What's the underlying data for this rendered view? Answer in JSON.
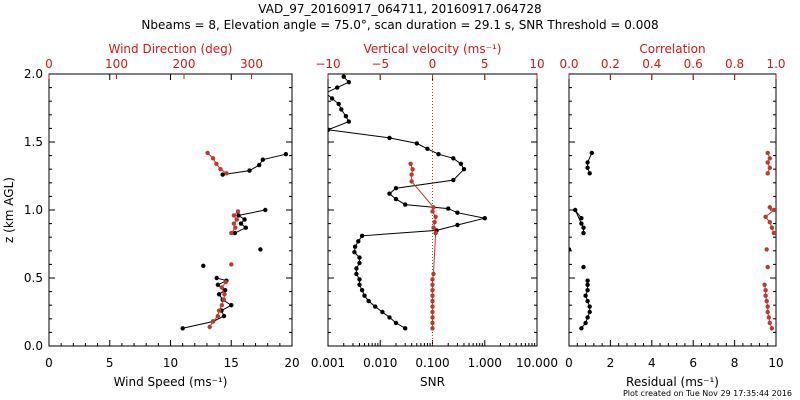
{
  "title": "VAD_97_20160917_064711, 20160917.064728",
  "subtitle": "Nbeams = 8, Elevation angle = 75.0°, scan duration = 29.1 s, SNR Threshold = 0.008",
  "footer": "Plot created on Tue Nov 29 17:35:44 2016",
  "colors": {
    "black": "#000000",
    "red": "#c0392b",
    "accent_red": "#d01a1a"
  },
  "chart_data": [
    {
      "type": "scatter",
      "ylabel": "z (km AGL)",
      "ylim": [
        0,
        2.0
      ],
      "yticks": [
        "0.0",
        "0.5",
        "1.0",
        "1.5",
        "2.0"
      ],
      "bottom_axis": {
        "label": "Wind Speed (ms⁻¹)",
        "range": [
          0,
          20
        ],
        "ticks": [
          "0",
          "5",
          "10",
          "15",
          "20"
        ]
      },
      "top_axis": {
        "label": "Wind Direction (deg)",
        "range": [
          0,
          360
        ],
        "ticks": [
          "0",
          "100",
          "200",
          "300"
        ]
      },
      "series": [
        {
          "axis": "bottom",
          "color": "black",
          "connect": true,
          "points": [
            [
              11.0,
              0.13
            ],
            [
              13.5,
              0.18
            ],
            [
              14.4,
              0.22
            ],
            [
              14.2,
              0.26
            ],
            [
              15.0,
              0.3
            ],
            [
              14.3,
              0.34
            ],
            [
              14.0,
              0.38
            ],
            [
              14.5,
              0.41
            ],
            [
              13.9,
              0.45
            ],
            [
              14.6,
              0.48
            ],
            [
              13.8,
              0.5
            ]
          ]
        },
        {
          "axis": "bottom",
          "color": "black",
          "connect": true,
          "points": [
            [
              15.3,
              0.83
            ],
            [
              16.2,
              0.87
            ],
            [
              15.8,
              0.9
            ],
            [
              16.1,
              0.93
            ],
            [
              15.6,
              0.96
            ],
            [
              17.8,
              1.0
            ]
          ]
        },
        {
          "axis": "bottom",
          "color": "black",
          "connect": false,
          "points": [
            [
              12.7,
              0.59
            ],
            [
              17.4,
              0.71
            ]
          ]
        },
        {
          "axis": "bottom",
          "color": "black",
          "connect": true,
          "points": [
            [
              14.3,
              1.26
            ],
            [
              16.5,
              1.29
            ],
            [
              17.3,
              1.33
            ],
            [
              17.6,
              1.37
            ],
            [
              19.5,
              1.41
            ]
          ]
        },
        {
          "axis": "top",
          "color": "red",
          "connect": true,
          "points": [
            [
              238,
              0.14
            ],
            [
              243,
              0.18
            ],
            [
              250,
              0.22
            ],
            [
              252,
              0.26
            ],
            [
              256,
              0.3
            ],
            [
              259,
              0.34
            ],
            [
              260,
              0.38
            ],
            [
              256,
              0.43
            ],
            [
              262,
              0.47
            ]
          ]
        },
        {
          "axis": "top",
          "color": "red",
          "connect": true,
          "points": [
            [
              270,
              0.83
            ],
            [
              276,
              0.87
            ],
            [
              274,
              0.9
            ],
            [
              278,
              0.93
            ],
            [
              274,
              0.96
            ],
            [
              280,
              0.99
            ]
          ]
        },
        {
          "axis": "top",
          "color": "red",
          "connect": false,
          "points": [
            [
              270,
              0.6
            ]
          ]
        },
        {
          "axis": "top",
          "color": "red",
          "connect": true,
          "points": [
            [
              263,
              1.27
            ],
            [
              254,
              1.3
            ],
            [
              248,
              1.34
            ],
            [
              243,
              1.38
            ],
            [
              235,
              1.42
            ]
          ]
        }
      ]
    },
    {
      "type": "line",
      "ylim": [
        0,
        2.0
      ],
      "bottom_axis": {
        "label": "SNR",
        "scale": "log",
        "range": [
          0.001,
          10
        ],
        "ticks": [
          "0.001",
          "0.010",
          "0.100",
          "1.000",
          "10.000"
        ]
      },
      "top_axis": {
        "label": "Vertical velocity (ms⁻¹)",
        "range": [
          -10,
          10
        ],
        "ticks": [
          "−10",
          "−5",
          "0",
          "5",
          "10"
        ]
      },
      "reference_line": {
        "axis": "top",
        "value": 0,
        "style": "dotted",
        "color": "red"
      },
      "series": [
        {
          "axis": "bottom",
          "color": "black",
          "connect": true,
          "points": [
            [
              0.03,
              0.13
            ],
            [
              0.02,
              0.17
            ],
            [
              0.015,
              0.21
            ],
            [
              0.011,
              0.25
            ],
            [
              0.008,
              0.29
            ],
            [
              0.006,
              0.33
            ],
            [
              0.005,
              0.37
            ],
            [
              0.0045,
              0.41
            ],
            [
              0.004,
              0.45
            ],
            [
              0.004,
              0.49
            ],
            [
              0.0035,
              0.53
            ],
            [
              0.0035,
              0.57
            ],
            [
              0.004,
              0.61
            ],
            [
              0.004,
              0.65
            ],
            [
              0.0032,
              0.69
            ],
            [
              0.0033,
              0.73
            ],
            [
              0.0038,
              0.77
            ],
            [
              0.0045,
              0.81
            ],
            [
              0.12,
              0.85
            ],
            [
              0.3,
              0.89
            ],
            [
              1.0,
              0.94
            ],
            [
              0.3,
              0.98
            ],
            [
              0.2,
              1.01
            ],
            [
              0.03,
              1.04
            ],
            [
              0.02,
              1.08
            ],
            [
              0.015,
              1.12
            ],
            [
              0.02,
              1.16
            ],
            [
              0.25,
              1.22
            ],
            [
              0.4,
              1.3
            ],
            [
              0.35,
              1.34
            ],
            [
              0.25,
              1.38
            ],
            [
              0.13,
              1.41
            ],
            [
              0.08,
              1.45
            ],
            [
              0.05,
              1.49
            ],
            [
              0.015,
              1.53
            ],
            [
              0.001,
              1.59
            ],
            [
              0.0025,
              1.65
            ],
            [
              0.0022,
              1.69
            ],
            [
              0.0018,
              1.74
            ],
            [
              0.0016,
              1.78
            ],
            [
              0.0012,
              1.82
            ],
            [
              0.0009,
              1.86
            ],
            [
              0.0015,
              1.9
            ],
            [
              0.0025,
              1.94
            ],
            [
              0.002,
              1.98
            ]
          ]
        },
        {
          "axis": "top",
          "color": "red",
          "connect": true,
          "points": [
            [
              0,
              0.13
            ],
            [
              0,
              0.17
            ],
            [
              0,
              0.21
            ],
            [
              0,
              0.25
            ],
            [
              0,
              0.29
            ],
            [
              0,
              0.33
            ],
            [
              0,
              0.37
            ],
            [
              0,
              0.41
            ],
            [
              0,
              0.45
            ],
            [
              0,
              0.49
            ],
            [
              0.1,
              0.53
            ],
            [
              0.3,
              0.83
            ],
            [
              0.1,
              0.87
            ],
            [
              0.2,
              0.91
            ],
            [
              0.3,
              0.95
            ],
            [
              0,
              0.99
            ],
            [
              0.1,
              1.02
            ],
            [
              -2,
              1.21
            ],
            [
              -2,
              1.26
            ],
            [
              -1.9,
              1.3
            ],
            [
              -2.1,
              1.34
            ]
          ]
        }
      ]
    },
    {
      "type": "scatter",
      "ylim": [
        0,
        2.0
      ],
      "bottom_axis": {
        "label": "Residual (ms⁻¹)",
        "range": [
          0,
          10
        ],
        "ticks": [
          "0",
          "2",
          "4",
          "6",
          "8",
          "10"
        ]
      },
      "top_axis": {
        "label": "Correlation",
        "range": [
          0,
          1.0
        ],
        "ticks": [
          "0.0",
          "0.2",
          "0.4",
          "0.6",
          "0.8",
          "1.0"
        ]
      },
      "series": [
        {
          "axis": "bottom",
          "color": "black",
          "connect": true,
          "points": [
            [
              0.6,
              0.13
            ],
            [
              0.8,
              0.17
            ],
            [
              0.9,
              0.21
            ],
            [
              1.0,
              0.25
            ],
            [
              1.0,
              0.29
            ],
            [
              0.9,
              0.33
            ],
            [
              0.8,
              0.37
            ],
            [
              0.9,
              0.41
            ],
            [
              0.9,
              0.45
            ],
            [
              0.9,
              0.48
            ]
          ]
        },
        {
          "axis": "bottom",
          "color": "black",
          "connect": false,
          "points": [
            [
              0.7,
              0.58
            ],
            [
              0.0,
              0.71
            ]
          ]
        },
        {
          "axis": "bottom",
          "color": "black",
          "connect": true,
          "points": [
            [
              0.7,
              0.83
            ],
            [
              0.7,
              0.87
            ],
            [
              0.6,
              0.9
            ],
            [
              0.3,
              1.0
            ],
            [
              0.6,
              0.94
            ]
          ]
        },
        {
          "axis": "bottom",
          "color": "black",
          "connect": true,
          "points": [
            [
              1.0,
              1.27
            ],
            [
              0.9,
              1.31
            ],
            [
              0.9,
              1.35
            ],
            [
              1.1,
              1.42
            ]
          ]
        },
        {
          "axis": "top",
          "color": "red",
          "connect": true,
          "points": [
            [
              0.98,
              0.13
            ],
            [
              0.97,
              0.17
            ],
            [
              0.965,
              0.21
            ],
            [
              0.96,
              0.25
            ],
            [
              0.96,
              0.29
            ],
            [
              0.955,
              0.33
            ],
            [
              0.95,
              0.37
            ],
            [
              0.95,
              0.41
            ],
            [
              0.945,
              0.45
            ]
          ]
        },
        {
          "axis": "top",
          "color": "red",
          "connect": false,
          "points": [
            [
              0.96,
              0.58
            ],
            [
              0.955,
              0.71
            ]
          ]
        },
        {
          "axis": "top",
          "color": "red",
          "connect": true,
          "points": [
            [
              0.99,
              0.83
            ],
            [
              0.98,
              0.87
            ],
            [
              0.97,
              0.91
            ],
            [
              0.95,
              0.95
            ],
            [
              0.99,
              1.0
            ],
            [
              0.97,
              1.02
            ]
          ]
        },
        {
          "axis": "top",
          "color": "red",
          "connect": true,
          "points": [
            [
              0.96,
              1.27
            ],
            [
              0.97,
              1.31
            ],
            [
              0.96,
              1.35
            ],
            [
              0.97,
              1.38
            ],
            [
              0.96,
              1.42
            ]
          ]
        }
      ]
    }
  ]
}
